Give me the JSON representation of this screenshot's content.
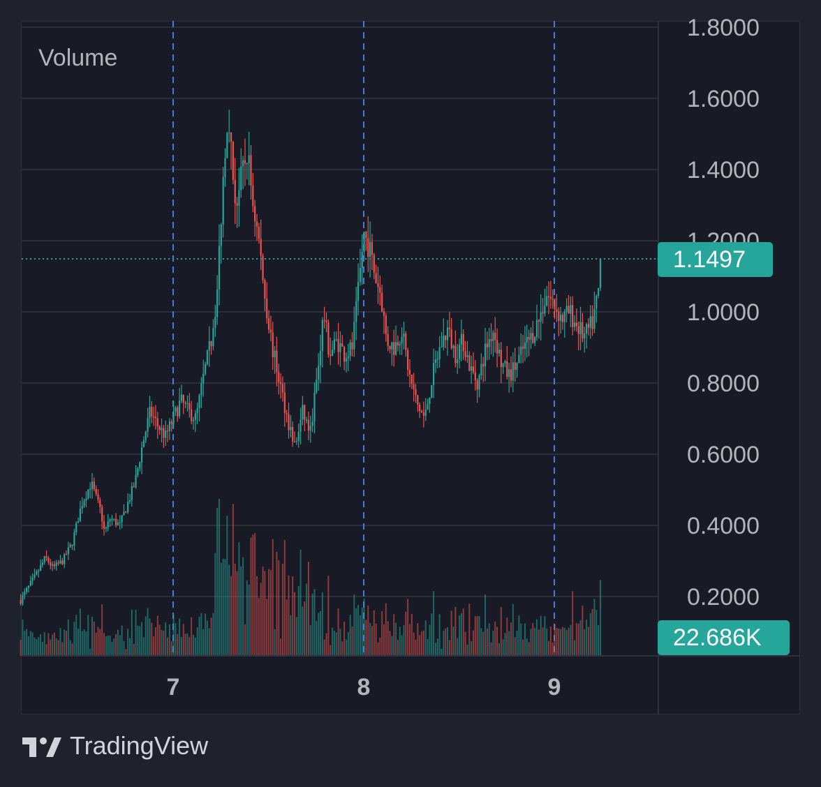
{
  "volume_title": "Volume",
  "last_price_label": "1.1497",
  "volume_label": "22.686K",
  "brand": {
    "name": "TradingView",
    "logo_icon": "tradingview-logo-icon"
  },
  "colors": {
    "background": "#181b25",
    "grid": "#2a2e39",
    "up": "#26a69a",
    "down": "#ef5350",
    "session_line": "#4a7bd8",
    "badge": "#26a69a",
    "text": "#b2b5be"
  },
  "chart_data": {
    "type": "candlestick",
    "y_ticks": [
      "0.2000",
      "0.4000",
      "0.6000",
      "0.8000",
      "1.0000",
      "1.2000",
      "1.4000",
      "1.6000",
      "1.8000"
    ],
    "x_ticks": [
      "7",
      "8",
      "9"
    ],
    "ylim": [
      0.18,
      1.8
    ],
    "last_price": 1.1497,
    "last_volume": "22.686K",
    "session_separators": [
      "7",
      "8",
      "9"
    ],
    "close_path": [
      [
        6.2,
        0.19
      ],
      [
        6.28,
        0.26
      ],
      [
        6.33,
        0.31
      ],
      [
        6.37,
        0.28
      ],
      [
        6.42,
        0.3
      ],
      [
        6.47,
        0.35
      ],
      [
        6.52,
        0.46
      ],
      [
        6.57,
        0.52
      ],
      [
        6.6,
        0.47
      ],
      [
        6.62,
        0.44
      ],
      [
        6.64,
        0.38
      ],
      [
        6.67,
        0.42
      ],
      [
        6.72,
        0.4
      ],
      [
        6.76,
        0.46
      ],
      [
        6.8,
        0.52
      ],
      [
        6.84,
        0.63
      ],
      [
        6.88,
        0.72
      ],
      [
        6.92,
        0.68
      ],
      [
        6.96,
        0.65
      ],
      [
        7.0,
        0.7
      ],
      [
        7.04,
        0.75
      ],
      [
        7.08,
        0.72
      ],
      [
        7.12,
        0.7
      ],
      [
        7.16,
        0.82
      ],
      [
        7.2,
        0.92
      ],
      [
        7.23,
        1.05
      ],
      [
        7.25,
        1.25
      ],
      [
        7.27,
        1.45
      ],
      [
        7.29,
        1.58
      ],
      [
        7.31,
        1.4
      ],
      [
        7.33,
        1.3
      ],
      [
        7.36,
        1.38
      ],
      [
        7.39,
        1.45
      ],
      [
        7.42,
        1.3
      ],
      [
        7.45,
        1.2
      ],
      [
        7.48,
        1.05
      ],
      [
        7.52,
        0.9
      ],
      [
        7.56,
        0.8
      ],
      [
        7.6,
        0.7
      ],
      [
        7.64,
        0.62
      ],
      [
        7.68,
        0.72
      ],
      [
        7.72,
        0.66
      ],
      [
        7.76,
        0.84
      ],
      [
        7.79,
        1.0
      ],
      [
        7.82,
        0.88
      ],
      [
        7.86,
        0.92
      ],
      [
        7.9,
        0.88
      ],
      [
        7.94,
        0.9
      ],
      [
        7.97,
        1.05
      ],
      [
        8.0,
        1.22
      ],
      [
        8.03,
        1.18
      ],
      [
        8.06,
        1.1
      ],
      [
        8.09,
        1.05
      ],
      [
        8.12,
        0.92
      ],
      [
        8.16,
        0.9
      ],
      [
        8.2,
        0.95
      ],
      [
        8.24,
        0.82
      ],
      [
        8.28,
        0.74
      ],
      [
        8.32,
        0.7
      ],
      [
        8.36,
        0.82
      ],
      [
        8.4,
        0.9
      ],
      [
        8.44,
        0.95
      ],
      [
        8.48,
        0.88
      ],
      [
        8.52,
        0.92
      ],
      [
        8.56,
        0.84
      ],
      [
        8.6,
        0.8
      ],
      [
        8.64,
        0.9
      ],
      [
        8.68,
        0.95
      ],
      [
        8.72,
        0.86
      ],
      [
        8.76,
        0.82
      ],
      [
        8.8,
        0.85
      ],
      [
        8.84,
        0.9
      ],
      [
        8.88,
        0.93
      ],
      [
        8.92,
        0.98
      ],
      [
        8.96,
        1.05
      ],
      [
        9.0,
        1.02
      ],
      [
        9.04,
        0.98
      ],
      [
        9.08,
        1.0
      ],
      [
        9.12,
        0.96
      ],
      [
        9.16,
        0.93
      ],
      [
        9.2,
        0.97
      ],
      [
        9.23,
        1.05
      ],
      [
        9.25,
        1.1497
      ]
    ]
  }
}
